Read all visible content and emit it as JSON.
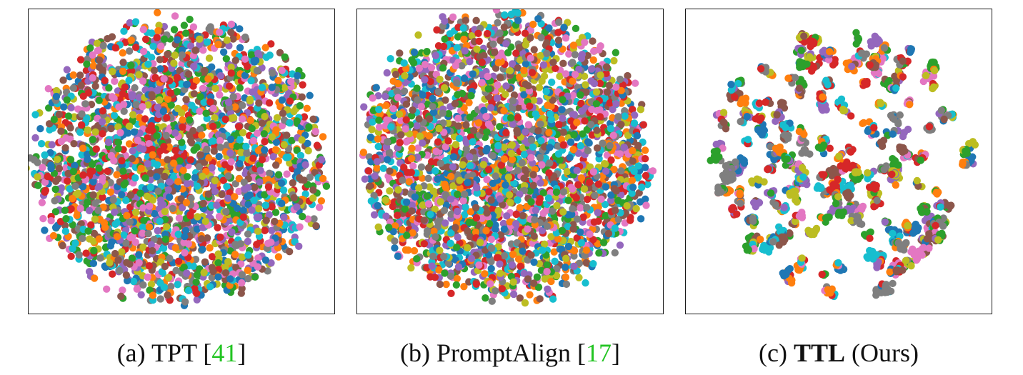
{
  "figure": {
    "panels": [
      {
        "id": "a",
        "caption": {
          "prefix": "(a) ",
          "method": "TPT",
          "method_bold": false,
          "open": " [",
          "cite": "41",
          "close": "]",
          "suffix": ""
        }
      },
      {
        "id": "b",
        "caption": {
          "prefix": "(b) ",
          "method": "PromptAlign",
          "method_bold": false,
          "open": " [",
          "cite": "17",
          "close": "]",
          "suffix": ""
        }
      },
      {
        "id": "c",
        "caption": {
          "prefix": "(c) ",
          "method": "TTL",
          "method_bold": true,
          "open": "",
          "cite": "",
          "close": "",
          "suffix": " (Ours)"
        }
      }
    ],
    "citation_color": "#22c422"
  },
  "chart_data": [
    {
      "type": "scatter",
      "panel": "a",
      "structure": "dense-mixed",
      "axes_visible": false,
      "grid": false,
      "marker": "circle",
      "palette": [
        "#1f77b4",
        "#ff7f0e",
        "#2ca02c",
        "#d62728",
        "#9467bd",
        "#8c564b",
        "#e377c2",
        "#7f7f7f",
        "#bcbd22",
        "#17becf"
      ]
    },
    {
      "type": "scatter",
      "panel": "b",
      "structure": "dense-mixed",
      "axes_visible": false,
      "grid": false,
      "marker": "circle",
      "palette": [
        "#1f77b4",
        "#ff7f0e",
        "#2ca02c",
        "#d62728",
        "#9467bd",
        "#8c564b",
        "#e377c2",
        "#7f7f7f",
        "#bcbd22",
        "#17becf"
      ]
    },
    {
      "type": "scatter",
      "panel": "c",
      "structure": "separated-clusters",
      "axes_visible": false,
      "grid": false,
      "marker": "circle",
      "palette": [
        "#1f77b4",
        "#ff7f0e",
        "#2ca02c",
        "#d62728",
        "#9467bd",
        "#8c564b",
        "#e377c2",
        "#7f7f7f",
        "#bcbd22",
        "#17becf"
      ]
    }
  ]
}
